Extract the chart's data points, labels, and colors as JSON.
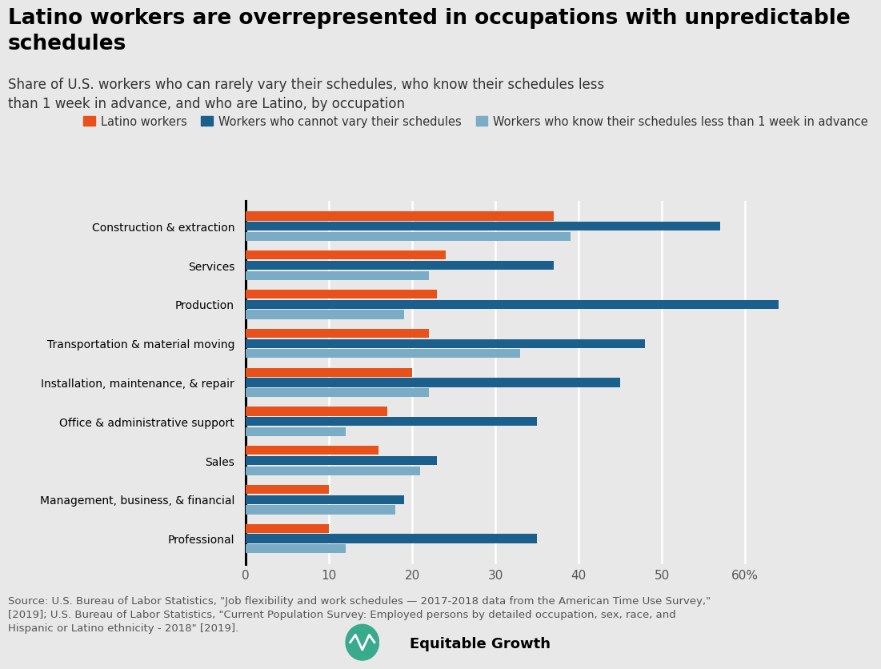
{
  "title": "Latino workers are overrepresented in occupations with unpredictable\nschedules",
  "subtitle": "Share of U.S. workers who can rarely vary their schedules, who know their schedules less\nthan 1 week in advance, and who are Latino, by occupation",
  "categories": [
    "Professional",
    "Management, business, & financial",
    "Sales",
    "Office & administrative support",
    "Installation, maintenance, & repair",
    "Transportation & material moving",
    "Production",
    "Services",
    "Construction & extraction"
  ],
  "latino": [
    10,
    10,
    16,
    17,
    20,
    22,
    23,
    24,
    37
  ],
  "cannot_vary": [
    35,
    19,
    23,
    35,
    45,
    48,
    64,
    37,
    57
  ],
  "less_1week": [
    12,
    18,
    21,
    12,
    22,
    33,
    19,
    22,
    39
  ],
  "colors": {
    "latino": "#e8521a",
    "cannot_vary": "#1b5f8c",
    "less_1week": "#7aacc5",
    "background": "#e8e8e8",
    "title_color": "#000000",
    "source_color": "#555555"
  },
  "legend": [
    "Latino workers",
    "Workers who cannot vary their schedules",
    "Workers who know their schedules less than 1 week in advance"
  ],
  "source": "Source: U.S. Bureau of Labor Statistics, \"Job flexibility and work schedules — 2017-2018 data from the American Time Use Survey,\"\n[2019]; U.S. Bureau of Labor Statistics, \"Current Population Survey: Employed persons by detailed occupation, sex, race, and\nHispanic or Latino ethnicity - 2018\" [2019].",
  "xlim": [
    0,
    68
  ],
  "xticks": [
    0,
    10,
    20,
    30,
    40,
    50,
    60
  ],
  "xtick_labels": [
    "0",
    "10",
    "20",
    "30",
    "40",
    "50",
    "60%"
  ]
}
